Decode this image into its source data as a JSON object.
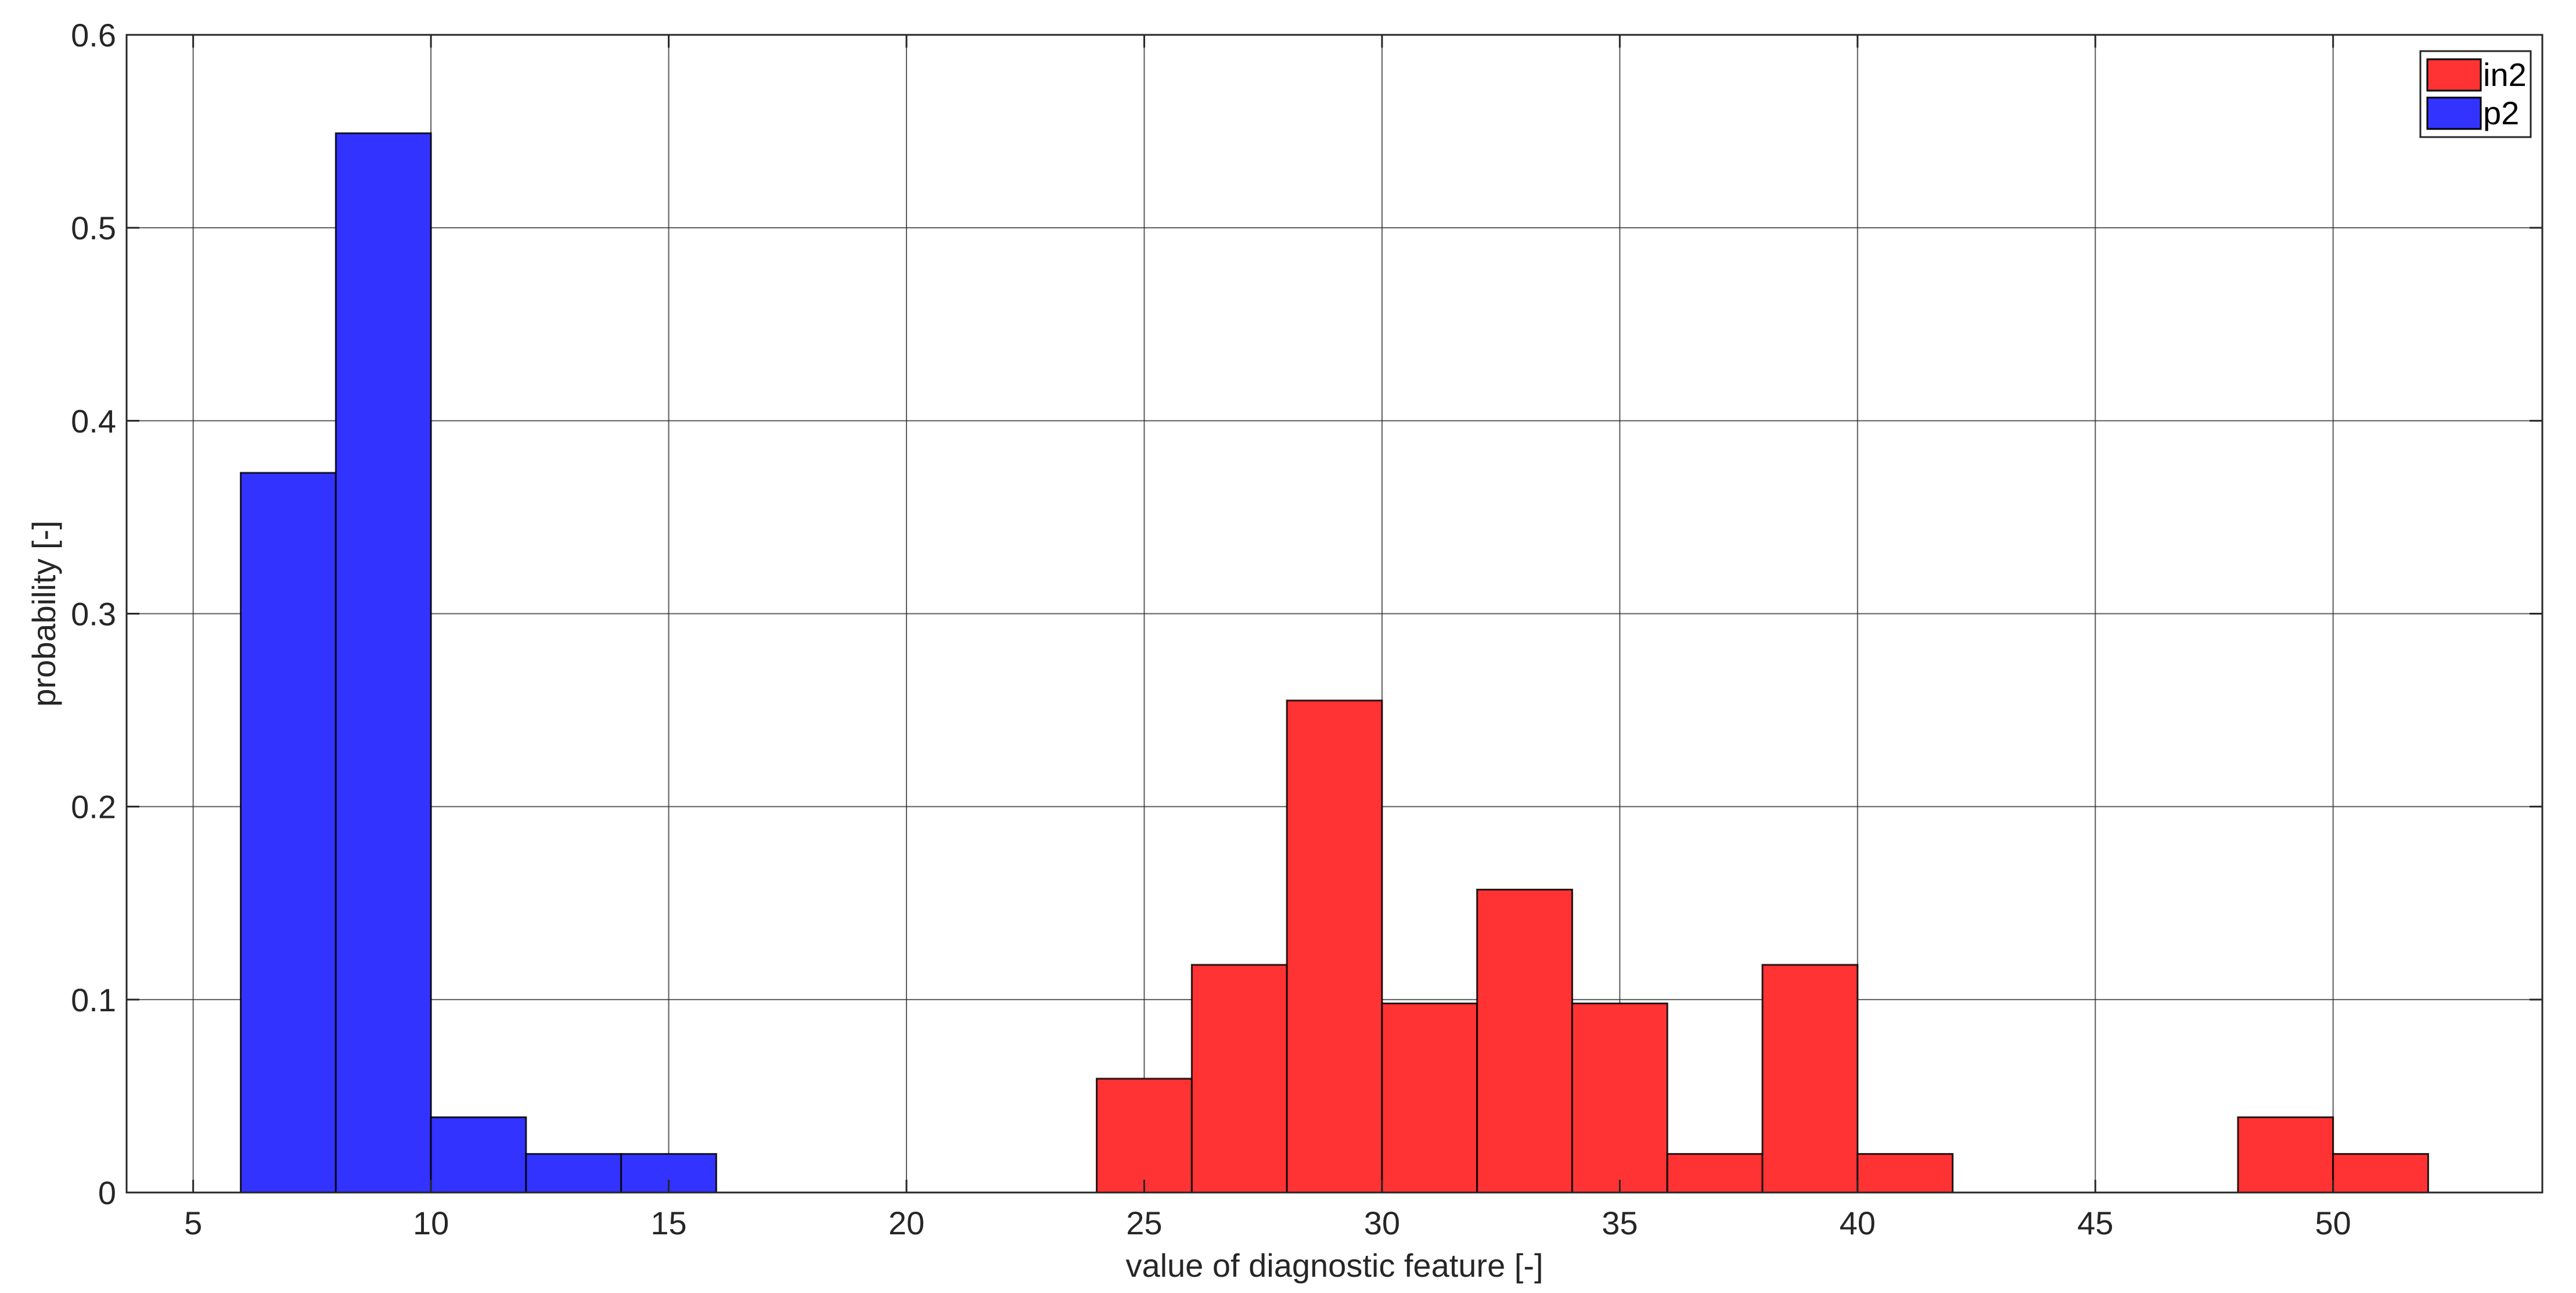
{
  "chart_data": {
    "type": "bar",
    "xlabel": "value of diagnostic feature [-]",
    "ylabel": "probability [-]",
    "xlim": [
      3.6,
      54.4
    ],
    "ylim": [
      0,
      0.6
    ],
    "xticks": [
      5,
      10,
      15,
      20,
      25,
      30,
      35,
      40,
      45,
      50
    ],
    "yticks": [
      0,
      0.1,
      0.2,
      0.3,
      0.4,
      0.5,
      0.6
    ],
    "xtick_labels": [
      "5",
      "10",
      "15",
      "20",
      "25",
      "30",
      "35",
      "40",
      "45",
      "50"
    ],
    "ytick_labels": [
      "0",
      "0.1",
      "0.2",
      "0.3",
      "0.4",
      "0.5",
      "0.6"
    ],
    "grid": true,
    "legend_position": "top-right",
    "bin_width": 2,
    "series": [
      {
        "name": "in2",
        "color": "#ff3333",
        "bin_starts": [
          24,
          26,
          28,
          30,
          32,
          34,
          36,
          38,
          40,
          42,
          44,
          46,
          48,
          50
        ],
        "values": [
          0.059,
          0.118,
          0.255,
          0.098,
          0.157,
          0.098,
          0.02,
          0.118,
          0.02,
          0,
          0,
          0,
          0.039,
          0.02
        ]
      },
      {
        "name": "p2",
        "color": "#3333ff",
        "bin_starts": [
          6,
          8,
          10,
          12,
          14
        ],
        "values": [
          0.373,
          0.549,
          0.039,
          0.02,
          0.02
        ]
      }
    ]
  }
}
